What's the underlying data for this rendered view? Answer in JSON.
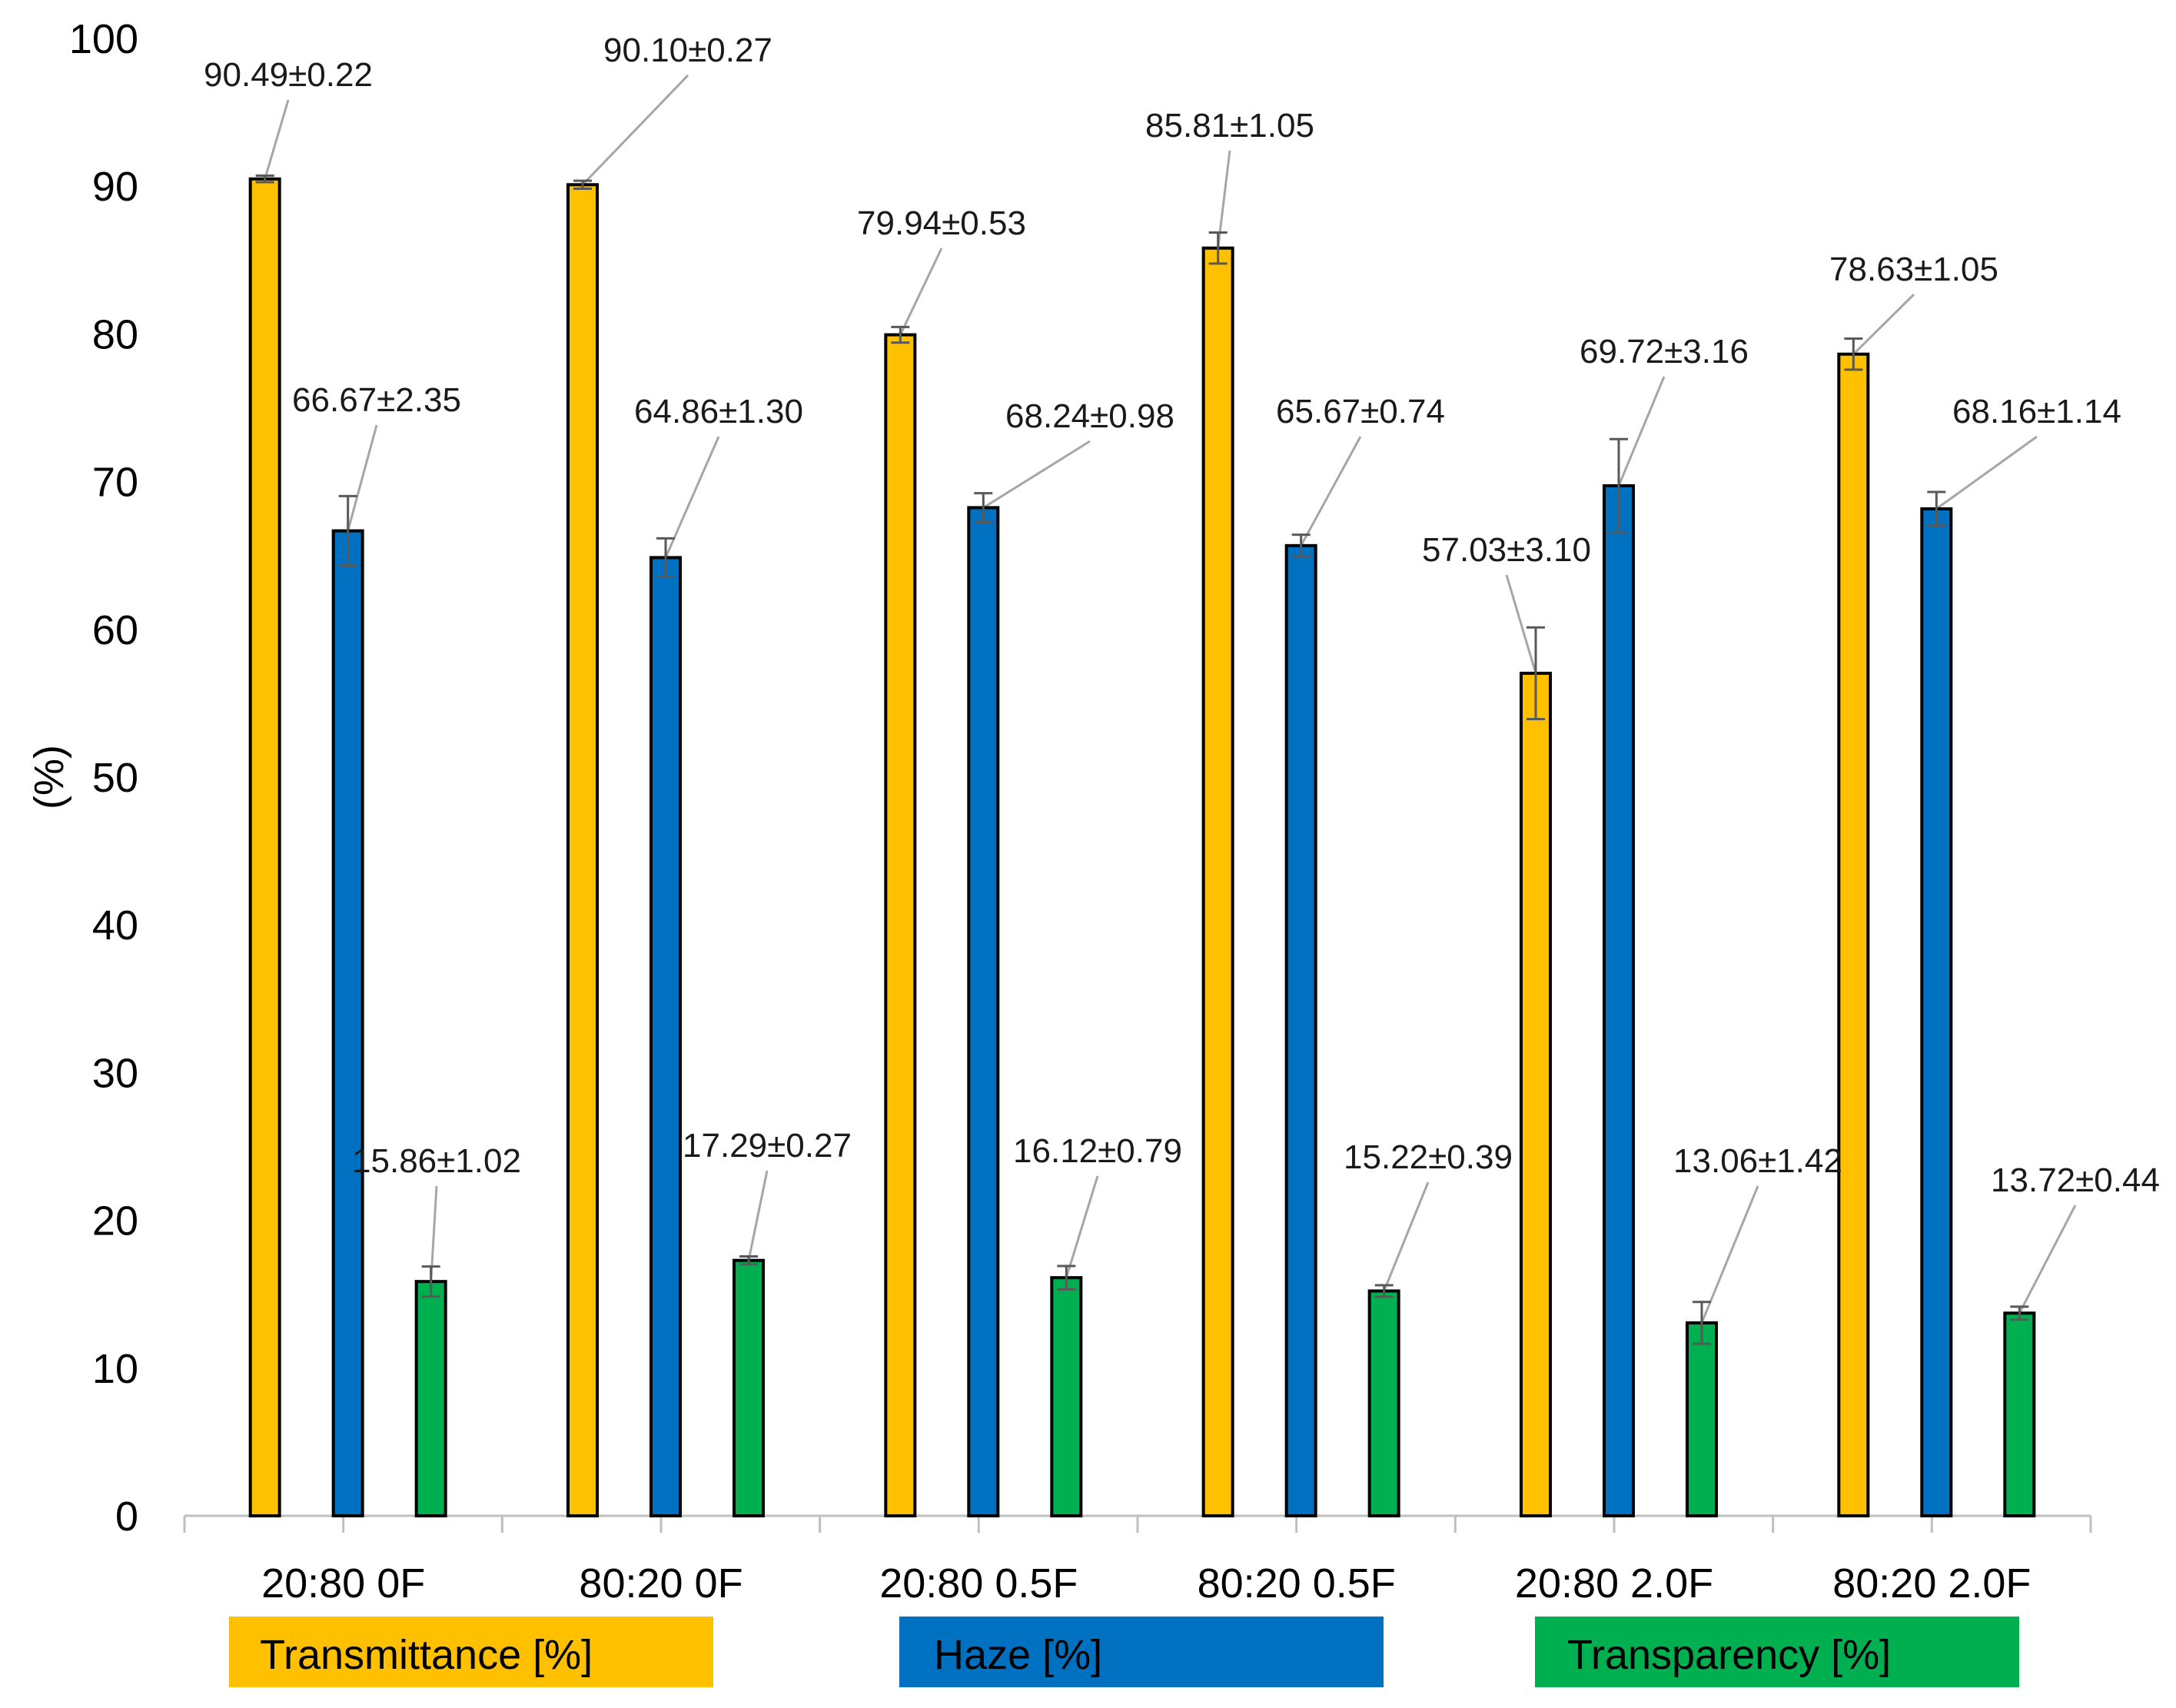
{
  "chart_data": {
    "type": "bar",
    "title": "",
    "xlabel": "",
    "ylabel": "(%)",
    "ylim": [
      0,
      100
    ],
    "yticks": [
      "0",
      "10",
      "20",
      "30",
      "40",
      "50",
      "60",
      "70",
      "80",
      "90",
      "100"
    ],
    "categories": [
      "20:80 0F",
      "80:20 0F",
      "20:80 0.5F",
      "80:20 0.5F",
      "20:80 2.0F",
      "80:20 2.0F"
    ],
    "grid": false,
    "legend_placement": "bottom",
    "series": [
      {
        "name": "Transmittance [%]",
        "color": "#FFC000",
        "values": [
          90.49,
          90.1,
          79.94,
          85.81,
          57.03,
          78.63
        ],
        "errors": [
          0.22,
          0.27,
          0.53,
          1.05,
          3.1,
          1.05
        ],
        "labels": [
          "90.49±0.22",
          "90.10±0.27",
          "79.94±0.53",
          "85.81±1.05",
          "57.03±3.10",
          "78.63±1.05"
        ]
      },
      {
        "name": "Haze [%]",
        "color": "#0070C0",
        "values": [
          66.67,
          64.86,
          68.24,
          65.67,
          69.72,
          68.16
        ],
        "errors": [
          2.35,
          1.3,
          0.98,
          0.74,
          3.16,
          1.14
        ],
        "labels": [
          "66.67±2.35",
          "64.86±1.30",
          "68.24±0.98",
          "65.67±0.74",
          "69.72±3.16",
          "68.16±1.14"
        ]
      },
      {
        "name": "Transparency [%]",
        "color": "#00B050",
        "values": [
          15.86,
          17.29,
          16.12,
          15.22,
          13.06,
          13.72
        ],
        "errors": [
          1.02,
          0.27,
          0.79,
          0.39,
          1.42,
          0.44
        ],
        "labels": [
          "15.86±1.02",
          "17.29±0.27",
          "16.12±0.79",
          "15.22±0.39",
          "13.06±1.42",
          "13.72±0.44"
        ]
      }
    ]
  }
}
